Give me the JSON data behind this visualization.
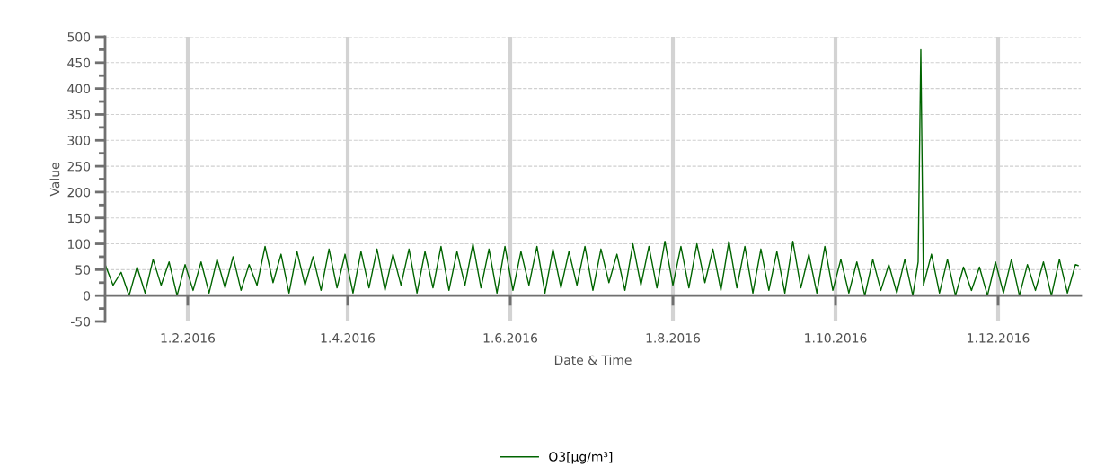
{
  "chart_data": {
    "type": "line",
    "xlabel": "Date & Time",
    "ylabel": "Value",
    "xlim": [
      "2016-01-01",
      "2017-01-01"
    ],
    "xticks": [
      {
        "value": "2016-02-01",
        "label": "1.2.2016"
      },
      {
        "value": "2016-04-01",
        "label": "1.4.2016"
      },
      {
        "value": "2016-06-01",
        "label": "1.6.2016"
      },
      {
        "value": "2016-08-01",
        "label": "1.8.2016"
      },
      {
        "value": "2016-10-01",
        "label": "1.10.2016"
      },
      {
        "value": "2016-12-01",
        "label": "1.12.2016"
      }
    ],
    "ylim": [
      -50,
      500
    ],
    "yticks": [
      -50,
      0,
      50,
      100,
      150,
      200,
      250,
      300,
      350,
      400,
      450,
      500
    ],
    "grid": true,
    "legend": "bottom",
    "marker": "none",
    "line_style": "solid",
    "series": [
      {
        "name": "O3[µg/m³]",
        "color": "#006400",
        "x": [
          "2016-01-01",
          "2016-01-04",
          "2016-01-07",
          "2016-01-10",
          "2016-01-13",
          "2016-01-16",
          "2016-01-19",
          "2016-01-22",
          "2016-01-25",
          "2016-01-28",
          "2016-01-31",
          "2016-02-03",
          "2016-02-06",
          "2016-02-09",
          "2016-02-12",
          "2016-02-15",
          "2016-02-18",
          "2016-02-21",
          "2016-02-24",
          "2016-02-27",
          "2016-03-01",
          "2016-03-04",
          "2016-03-07",
          "2016-03-10",
          "2016-03-13",
          "2016-03-16",
          "2016-03-19",
          "2016-03-22",
          "2016-03-25",
          "2016-03-28",
          "2016-03-31",
          "2016-04-03",
          "2016-04-06",
          "2016-04-09",
          "2016-04-12",
          "2016-04-15",
          "2016-04-18",
          "2016-04-21",
          "2016-04-24",
          "2016-04-27",
          "2016-04-30",
          "2016-05-03",
          "2016-05-06",
          "2016-05-09",
          "2016-05-12",
          "2016-05-15",
          "2016-05-18",
          "2016-05-21",
          "2016-05-24",
          "2016-05-27",
          "2016-05-30",
          "2016-06-02",
          "2016-06-05",
          "2016-06-08",
          "2016-06-11",
          "2016-06-14",
          "2016-06-17",
          "2016-06-20",
          "2016-06-23",
          "2016-06-26",
          "2016-06-29",
          "2016-07-02",
          "2016-07-05",
          "2016-07-08",
          "2016-07-11",
          "2016-07-14",
          "2016-07-17",
          "2016-07-20",
          "2016-07-23",
          "2016-07-26",
          "2016-07-29",
          "2016-08-01",
          "2016-08-04",
          "2016-08-07",
          "2016-08-10",
          "2016-08-13",
          "2016-08-16",
          "2016-08-19",
          "2016-08-22",
          "2016-08-25",
          "2016-08-28",
          "2016-08-31",
          "2016-09-03",
          "2016-09-06",
          "2016-09-09",
          "2016-09-12",
          "2016-09-15",
          "2016-09-18",
          "2016-09-21",
          "2016-09-24",
          "2016-09-27",
          "2016-09-30",
          "2016-10-03",
          "2016-10-06",
          "2016-10-09",
          "2016-10-12",
          "2016-10-15",
          "2016-10-18",
          "2016-10-21",
          "2016-10-24",
          "2016-10-27",
          "2016-10-30",
          "2016-11-01",
          "2016-11-02",
          "2016-11-03",
          "2016-11-06",
          "2016-11-09",
          "2016-11-12",
          "2016-11-15",
          "2016-11-18",
          "2016-11-21",
          "2016-11-24",
          "2016-11-27",
          "2016-11-30",
          "2016-12-03",
          "2016-12-06",
          "2016-12-09",
          "2016-12-12",
          "2016-12-15",
          "2016-12-18",
          "2016-12-21",
          "2016-12-24",
          "2016-12-27",
          "2016-12-30",
          "2016-12-31"
        ],
        "values": [
          60,
          20,
          45,
          0,
          55,
          5,
          70,
          20,
          65,
          0,
          60,
          10,
          65,
          5,
          70,
          15,
          75,
          10,
          60,
          20,
          95,
          25,
          80,
          5,
          85,
          20,
          75,
          10,
          90,
          15,
          80,
          5,
          85,
          15,
          90,
          10,
          80,
          20,
          90,
          5,
          85,
          15,
          95,
          10,
          85,
          20,
          100,
          15,
          90,
          5,
          95,
          10,
          85,
          20,
          95,
          5,
          90,
          15,
          85,
          20,
          95,
          10,
          90,
          25,
          80,
          10,
          100,
          20,
          95,
          15,
          105,
          20,
          95,
          15,
          100,
          25,
          90,
          10,
          105,
          15,
          95,
          5,
          90,
          10,
          85,
          5,
          105,
          15,
          80,
          5,
          95,
          10,
          70,
          5,
          65,
          0,
          70,
          10,
          60,
          5,
          70,
          0,
          65,
          475,
          20,
          80,
          5,
          70,
          0,
          55,
          10,
          55,
          0,
          65,
          5,
          70,
          0,
          60,
          10,
          65,
          0,
          70,
          5,
          60,
          58
        ]
      }
    ]
  }
}
